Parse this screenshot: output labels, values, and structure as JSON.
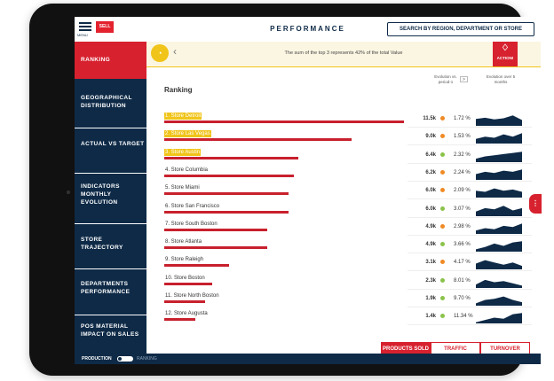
{
  "header": {
    "menu_label": "MENU",
    "logo_text": "SELL",
    "title": "PERFORMANCE",
    "search_placeholder": "SEARCH BY REGION, DEPARTMENT OR STORE"
  },
  "sidebar": {
    "items": [
      {
        "label": "RANKING",
        "active": true
      },
      {
        "label": "GEOGRAPHICAL DISTRIBUTION",
        "active": false
      },
      {
        "label": "ACTUAL VS TARGET",
        "active": false
      },
      {
        "label": "INDICATORS MONTHLY EVOLUTION",
        "active": false
      },
      {
        "label": "STORE TRAJECTORY",
        "active": false
      },
      {
        "label": "DEPARTMENTS PERFORMANCE",
        "active": false
      },
      {
        "label": "POS MATERIAL IMPACT ON SALES",
        "active": false
      }
    ]
  },
  "banner": {
    "icon": "pie-icon",
    "back_icon": "chevron-left-icon",
    "text": "The sum of the top 3 represents 42% of the total Value",
    "action_label": "ACTION!"
  },
  "ranking": {
    "title": "Ranking",
    "evolution_period_label": "Evolution vs. period-1",
    "evolution_months_label": "Evolution over 5 months",
    "rows": [
      {
        "label": "1. Store Detroit",
        "value": "11.5k",
        "pct": "1.72 %",
        "trend": "down",
        "bar": 1.0,
        "highlight": true,
        "spark": [
          0.6,
          0.7,
          0.55,
          0.65,
          0.9,
          0.5
        ]
      },
      {
        "label": "2. Store Las Vegas",
        "value": "9.0k",
        "pct": "1.53 %",
        "trend": "down",
        "bar": 0.78,
        "highlight": true,
        "spark": [
          0.4,
          0.6,
          0.5,
          0.8,
          0.6,
          0.9
        ]
      },
      {
        "label": "3. Store Austin",
        "value": "6.4k",
        "pct": "2.32 %",
        "trend": "up",
        "bar": 0.56,
        "highlight": true,
        "spark": [
          0.3,
          0.5,
          0.6,
          0.7,
          0.8,
          0.9
        ]
      },
      {
        "label": "4. Store Columbia",
        "value": "6.2k",
        "pct": "2.24 %",
        "trend": "down",
        "bar": 0.54,
        "highlight": false,
        "spark": [
          0.5,
          0.7,
          0.6,
          0.8,
          0.7,
          0.9
        ]
      },
      {
        "label": "5. Store Miami",
        "value": "6.0k",
        "pct": "2.09 %",
        "trend": "down",
        "bar": 0.52,
        "highlight": false,
        "spark": [
          0.6,
          0.5,
          0.8,
          0.6,
          0.7,
          0.5
        ]
      },
      {
        "label": "6. Store San Francisco",
        "value": "6.0k",
        "pct": "3.07 %",
        "trend": "up",
        "bar": 0.52,
        "highlight": false,
        "spark": [
          0.4,
          0.7,
          0.6,
          0.9,
          0.5,
          0.7
        ]
      },
      {
        "label": "7. Store South Boston",
        "value": "4.9k",
        "pct": "2.98 %",
        "trend": "down",
        "bar": 0.43,
        "highlight": false,
        "spark": [
          0.3,
          0.5,
          0.4,
          0.7,
          0.6,
          0.9
        ]
      },
      {
        "label": "8. Store Atlanta",
        "value": "4.9k",
        "pct": "3.66 %",
        "trend": "up",
        "bar": 0.43,
        "highlight": false,
        "spark": [
          0.2,
          0.4,
          0.7,
          0.5,
          0.8,
          0.9
        ]
      },
      {
        "label": "9. Store Raleigh",
        "value": "3.1k",
        "pct": "4.17 %",
        "trend": "down",
        "bar": 0.27,
        "highlight": false,
        "spark": [
          0.5,
          0.8,
          0.6,
          0.4,
          0.6,
          0.3
        ]
      },
      {
        "label": "10. Store Boston",
        "value": "2.3k",
        "pct": "8.01 %",
        "trend": "up",
        "bar": 0.2,
        "highlight": false,
        "spark": [
          0.3,
          0.7,
          0.5,
          0.6,
          0.4,
          0.2
        ]
      },
      {
        "label": "11. Store North Boston",
        "value": "1.9k",
        "pct": "9.70 %",
        "trend": "up",
        "bar": 0.17,
        "highlight": false,
        "spark": [
          0.2,
          0.5,
          0.6,
          0.8,
          0.5,
          0.3
        ]
      },
      {
        "label": "12. Store Augusta",
        "value": "1.4k",
        "pct": "11.34 %",
        "trend": "up",
        "bar": 0.13,
        "highlight": false,
        "spark": [
          0.1,
          0.3,
          0.5,
          0.4,
          0.8,
          0.9
        ]
      }
    ]
  },
  "tabs": [
    {
      "label": "PRODUCTS SOLD",
      "active": true
    },
    {
      "label": "TRAFFIC",
      "active": false
    },
    {
      "label": "TURNOVER",
      "active": false
    }
  ],
  "footer": {
    "production_label": "PRODUCTION",
    "ranking_label": "RANKING"
  },
  "colors": {
    "navy": "#0e2a47",
    "red": "#d7212e",
    "yellow": "#f0c419",
    "up": "#8bc34a",
    "down": "#f08a24"
  }
}
